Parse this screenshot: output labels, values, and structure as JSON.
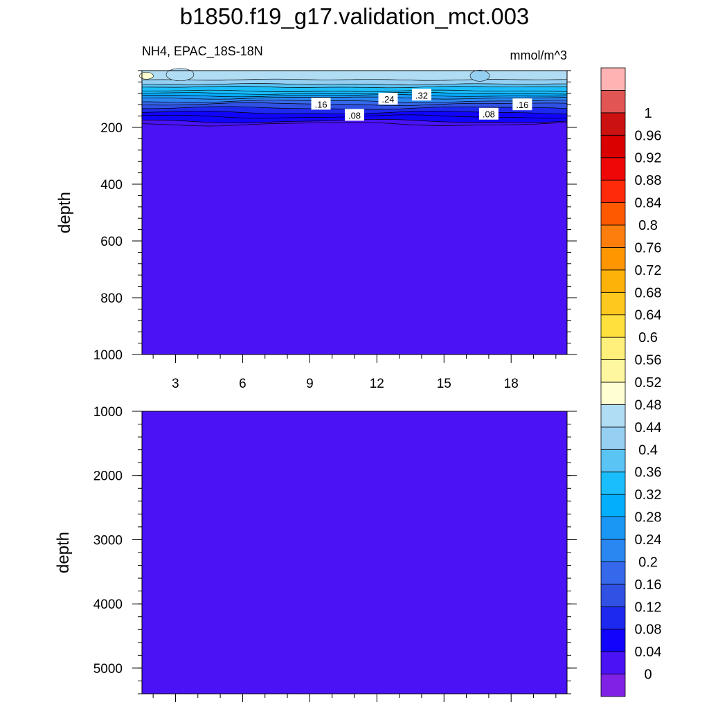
{
  "chart_data": {
    "type": "heatmap",
    "title": "b1850.f19_g17.validation_mct.003",
    "subtitle_left": "NH4, EPAC_18S-18N",
    "subtitle_right": "mmol/m^3",
    "colormap": [
      "#7f22e6",
      "#4a12f5",
      "#1004fb",
      "#1d29ee",
      "#3051e4",
      "#3668ec",
      "#2a86f0",
      "#1a97f5",
      "#03aefd",
      "#1bbefd",
      "#5ac4f5",
      "#95cff2",
      "#b0dcf4",
      "#ffffd1",
      "#fff6a0",
      "#fef07a",
      "#ffe03c",
      "#ffc81e",
      "#fdb20a",
      "#ff9600",
      "#fd7e0d",
      "#ff5900",
      "#ff2a0a",
      "#ef0606",
      "#da0000",
      "#cc1111",
      "#e25555",
      "#ffb3b3"
    ],
    "colorbar_levels": [
      "0",
      "0.04",
      "0.08",
      "0.12",
      "0.16",
      "0.2",
      "0.24",
      "0.28",
      "0.32",
      "0.36",
      "0.4",
      "0.44",
      "0.48",
      "0.52",
      "0.56",
      "0.6",
      "0.64",
      "0.68",
      "0.72",
      "0.76",
      "0.8",
      "0.84",
      "0.88",
      "0.92",
      "0.96",
      "1"
    ],
    "x_ticks": [
      3,
      6,
      9,
      12,
      15,
      18
    ],
    "x_tick_labels": [
      "3",
      "6",
      "9",
      "12",
      "15",
      "18"
    ],
    "xlim": [
      1.5,
      20.5
    ],
    "panels": [
      {
        "ylabel": "depth",
        "ylim": [
          1000,
          0
        ],
        "y_ticks": [
          200,
          400,
          600,
          800,
          1000
        ],
        "y_tick_labels": [
          "200",
          "400",
          "600",
          "800",
          "1000"
        ],
        "contour_depths": [
          32,
          48,
          58,
          72,
          80,
          88,
          96,
          108,
          118,
          132,
          148,
          162,
          178,
          188
        ],
        "contour_labels": [
          {
            "text": ".16",
            "x": 9.5,
            "y": 118
          },
          {
            "text": ".08",
            "x": 11.0,
            "y": 157
          },
          {
            "text": ".24",
            "x": 12.5,
            "y": 100
          },
          {
            "text": ".32",
            "x": 14.0,
            "y": 86
          },
          {
            "text": ".08",
            "x": 17.0,
            "y": 153
          },
          {
            "text": ".16",
            "x": 18.5,
            "y": 120
          }
        ]
      },
      {
        "ylabel": "depth",
        "ylim": [
          5400,
          1000
        ],
        "y_ticks": [
          1000,
          2000,
          3000,
          4000,
          5000
        ],
        "y_tick_labels": [
          "1000",
          "2000",
          "3000",
          "4000",
          "5000"
        ]
      }
    ]
  }
}
